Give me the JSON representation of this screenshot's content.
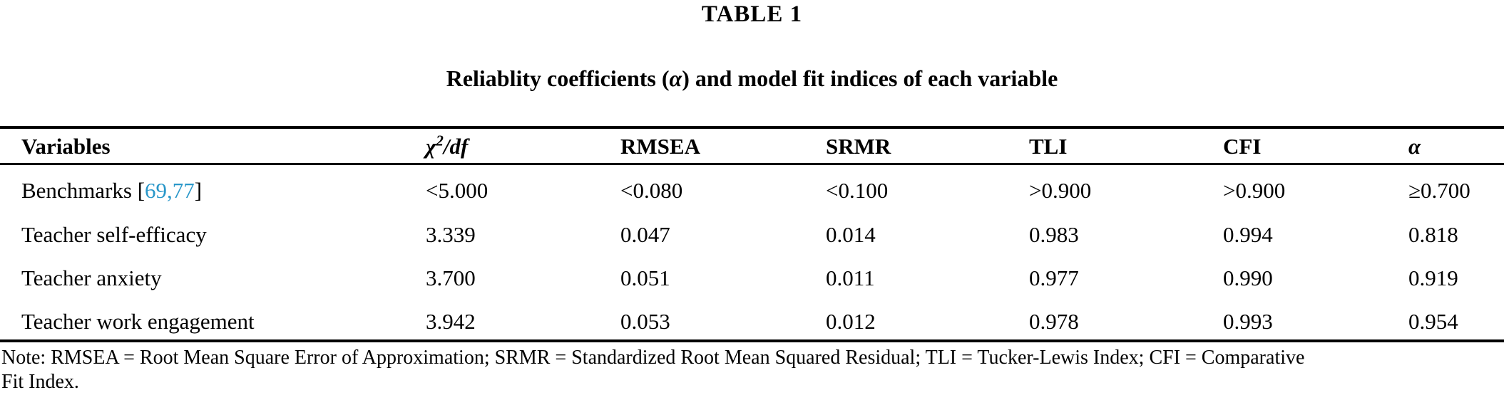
{
  "table": {
    "label": "TABLE 1",
    "caption": {
      "before": "Reliablity coefficients (",
      "alpha": "α",
      "after": ") and model fit indices of each variable"
    },
    "columns": [
      {
        "label": "Variables"
      },
      {
        "chi": "χ",
        "sup": "2",
        "rest": "/df"
      },
      {
        "label": "RMSEA"
      },
      {
        "label": "SRMR"
      },
      {
        "label": "TLI"
      },
      {
        "label": "CFI"
      },
      {
        "label": "α"
      }
    ],
    "rows": [
      {
        "variable_parts": {
          "prefix": "Benchmarks [",
          "cite1": "69",
          "comma": ",",
          "cite2": "77",
          "suffix": "]"
        },
        "values": [
          "<5.000",
          "<0.080",
          "<0.100",
          ">0.900",
          ">0.900",
          "≥0.700"
        ]
      },
      {
        "variable": "Teacher self-efficacy",
        "values": [
          "3.339",
          "0.047",
          "0.014",
          "0.983",
          "0.994",
          "0.818"
        ]
      },
      {
        "variable": "Teacher anxiety",
        "values": [
          "3.700",
          "0.051",
          "0.011",
          "0.977",
          "0.990",
          "0.919"
        ]
      },
      {
        "variable": "Teacher work engagement",
        "values": [
          "3.942",
          "0.053",
          "0.012",
          "0.978",
          "0.993",
          "0.954"
        ]
      }
    ]
  },
  "note": {
    "lines": [
      "Note: RMSEA = Root Mean Square Error of Approximation; SRMR = Standardized Root Mean Squared Residual; TLI = Tucker-Lewis Index; CFI = Comparative",
      "Fit Index."
    ]
  },
  "colors": {
    "citation_link": "#2a97c9",
    "text": "#000000"
  }
}
